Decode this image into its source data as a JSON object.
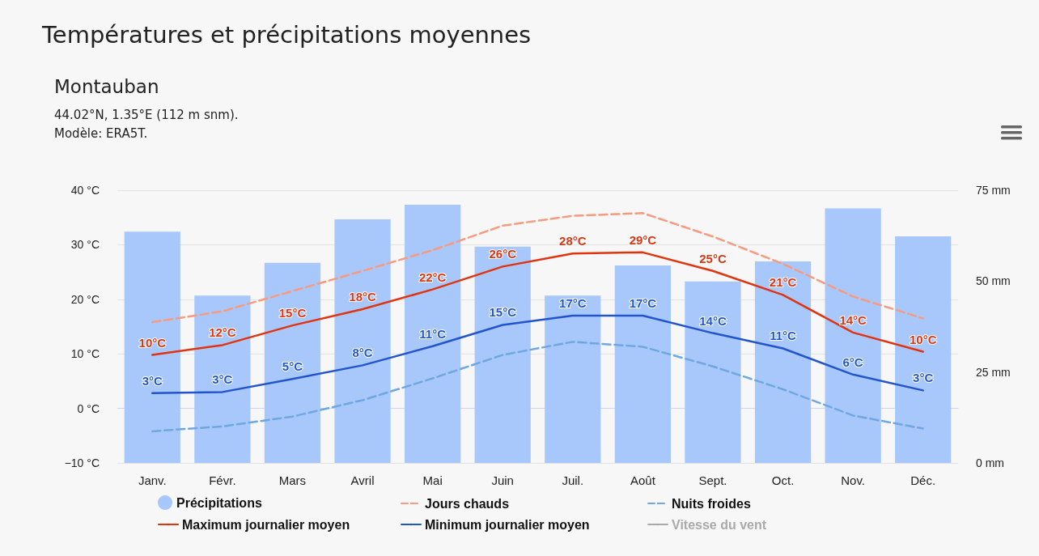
{
  "chart_data": {
    "type": "line",
    "title": "Températures et précipitations moyennes",
    "subtitle": "Montauban",
    "annotations": [
      "44.02°N, 1.35°E (112 m snm).",
      "Modèle: ERA5T."
    ],
    "categories": [
      "Janv.",
      "Févr.",
      "Mars",
      "Avril",
      "Mai",
      "Juin",
      "Juil.",
      "Août",
      "Sept.",
      "Oct.",
      "Nov.",
      "Déc."
    ],
    "series": [
      {
        "name": "Précipitations",
        "type": "bar",
        "axis": "y2",
        "color": "#a8c8fc",
        "values": [
          63.6,
          46,
          55,
          67,
          71,
          59.5,
          46,
          54.3,
          49.9,
          55.4,
          70,
          62.3
        ]
      },
      {
        "name": "Jours chauds",
        "color": "#f79a80",
        "line_style": "dashed",
        "values": [
          15.8,
          17.8,
          21.5,
          25.2,
          29,
          33.5,
          35.3,
          35.8,
          31.5,
          26.5,
          20.5,
          16.5
        ]
      },
      {
        "name": "Nuits froides",
        "color": "#6fa7e0",
        "line_style": "dashed",
        "values": [
          -4.2,
          -3.3,
          -1.5,
          1.5,
          5.5,
          9.8,
          12.2,
          11.3,
          7.7,
          3.5,
          -1.3,
          -3.7
        ]
      },
      {
        "name": "Maximum journalier moyen",
        "color": "#e0330f",
        "line_style": "solid",
        "values": [
          9.8,
          11.6,
          15.2,
          18.2,
          21.8,
          26,
          28.4,
          28.6,
          25.2,
          20.8,
          13.9,
          10.4
        ],
        "value_labels": [
          "10°C",
          "12°C",
          "15°C",
          "18°C",
          "22°C",
          "26°C",
          "28°C",
          "29°C",
          "25°C",
          "21°C",
          "14°C",
          "10°C"
        ]
      },
      {
        "name": "Minimum journalier moyen",
        "color": "#2255cc",
        "line_style": "solid",
        "values": [
          2.8,
          3.0,
          5.4,
          7.9,
          11.4,
          15.3,
          17.0,
          17.0,
          13.8,
          11.0,
          6.2,
          3.3
        ],
        "value_labels": [
          "3°C",
          "3°C",
          "5°C",
          "8°C",
          "11°C",
          "15°C",
          "17°C",
          "17°C",
          "14°C",
          "11°C",
          "6°C",
          "3°C"
        ]
      },
      {
        "name": "Vitesse du vent",
        "color": "#aaaaaa",
        "line_style": "solid",
        "values": [
          null,
          null,
          null,
          null,
          null,
          null,
          null,
          null,
          null,
          null,
          null,
          null
        ]
      }
    ],
    "ylim": [
      -10,
      40
    ],
    "yticks": [
      {
        "value": -10,
        "label": "−10 °C"
      },
      {
        "value": 0,
        "label": "0 °C"
      },
      {
        "value": 10,
        "label": "10 °C"
      },
      {
        "value": 20,
        "label": "20 °C"
      },
      {
        "value": 30,
        "label": "30 °C"
      },
      {
        "value": 40,
        "label": "40 °C"
      }
    ],
    "y2lim": [
      0,
      75
    ],
    "y2ticks": [
      {
        "value": 0,
        "label": "0 mm"
      },
      {
        "value": 25,
        "label": "25 mm"
      },
      {
        "value": 50,
        "label": "50 mm"
      },
      {
        "value": 75,
        "label": "75 mm"
      }
    ],
    "grid": "y",
    "legend": "bottom",
    "marker": "none"
  }
}
